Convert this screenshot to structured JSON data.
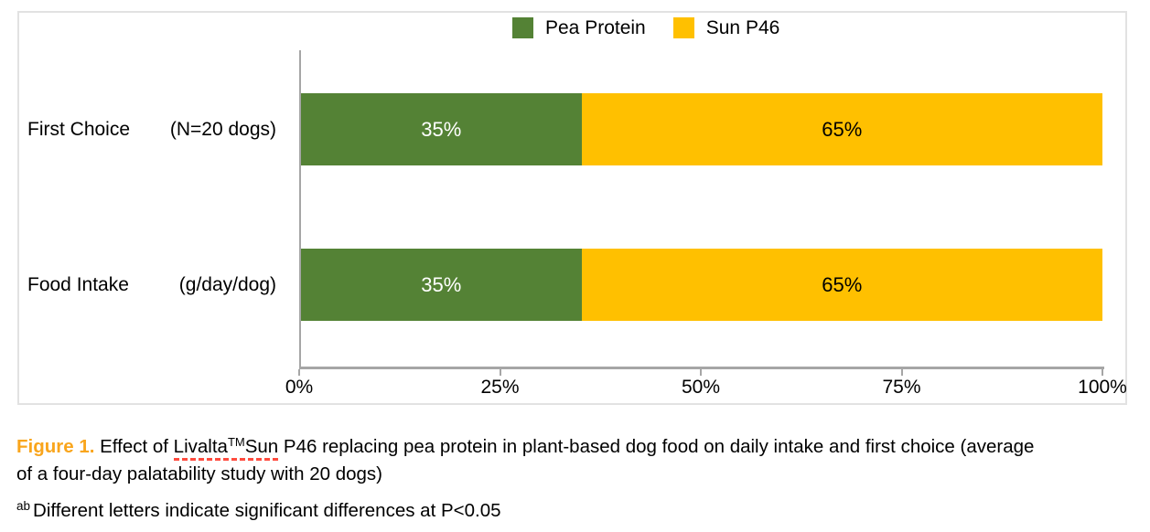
{
  "chart_data": {
    "type": "bar",
    "orientation": "horizontal",
    "stacked": true,
    "categories": [
      "First Choice (N=20 dogs)",
      "Food Intake (g/day/dog)"
    ],
    "series": [
      {
        "name": "Pea Protein",
        "color": "#548235",
        "values": [
          35,
          35
        ]
      },
      {
        "name": "Sun P46",
        "color": "#FFC000",
        "values": [
          65,
          65
        ]
      }
    ],
    "xlim": [
      0,
      100
    ],
    "x_ticks": [
      "0%",
      "25%",
      "50%",
      "75%",
      "100%"
    ],
    "legend_position": "top",
    "grid": false,
    "bar_value_labels": [
      [
        "35%",
        "65%"
      ],
      [
        "35%",
        "65%"
      ]
    ]
  },
  "legend": {
    "items": [
      {
        "label": "Pea Protein",
        "color": "#548235"
      },
      {
        "label": "Sun P46",
        "color": "#FFC000"
      }
    ]
  },
  "rows": [
    {
      "label": "First Choice",
      "sublabel": "(N=20 dogs)",
      "segments": [
        {
          "text": "35%",
          "value": 35,
          "color": "#548235"
        },
        {
          "text": "65%",
          "value": 65,
          "color": "#FFC000"
        }
      ]
    },
    {
      "label": "Food Intake",
      "sublabel": "(g/day/dog)",
      "segments": [
        {
          "text": "35%",
          "value": 35,
          "color": "#548235"
        },
        {
          "text": "65%",
          "value": 65,
          "color": "#FFC000"
        }
      ]
    }
  ],
  "axis": {
    "ticks": [
      "0%",
      "25%",
      "50%",
      "75%",
      "100%"
    ]
  },
  "caption": {
    "figure_label": "Figure 1.",
    "pre_brand": " Effect of ",
    "brand_part1": "Livalta",
    "brand_tm": "TM",
    "brand_part2": "Sun",
    "line1_rest": " P46 replacing pea protein in plant-based dog food on daily intake and first choice (average",
    "line2": "of a four-day palatability study with 20 dogs)",
    "footnote_sup": "ab",
    "footnote_text": "Different letters indicate significant differences at P<0.05"
  },
  "colors": {
    "pea_protein_green": "#548235",
    "sun_p46_gold": "#FFC000",
    "axis_gray": "#A6A6A6",
    "panel_border": "#E2E2E2",
    "figure_label_orange": "#F9A51C",
    "spellcheck_red": "#FF4B3E"
  }
}
